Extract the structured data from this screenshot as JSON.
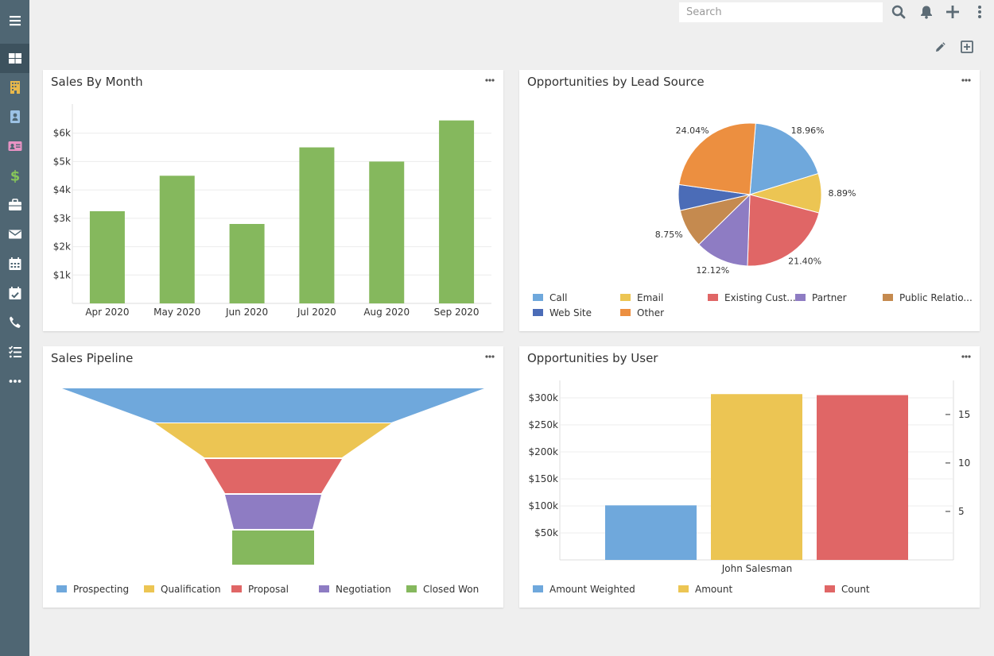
{
  "search": {
    "placeholder": "Search"
  },
  "sidebar": {
    "items": [
      {
        "icon": "menu-icon",
        "color": "#ffffff"
      },
      {
        "icon": "dashboard-icon",
        "color": "#ffffff"
      },
      {
        "icon": "building-icon",
        "color": "#e8b84b"
      },
      {
        "icon": "contact-icon",
        "color": "#9cc2e5"
      },
      {
        "icon": "id-card-icon",
        "color": "#e893c4"
      },
      {
        "icon": "dollar-icon",
        "color": "#86c55a"
      },
      {
        "icon": "briefcase-icon",
        "color": "#ffffff"
      },
      {
        "icon": "envelope-icon",
        "color": "#ffffff"
      },
      {
        "icon": "calendar-icon",
        "color": "#ffffff"
      },
      {
        "icon": "calendar-check-icon",
        "color": "#ffffff"
      },
      {
        "icon": "phone-icon",
        "color": "#ffffff"
      },
      {
        "icon": "tasks-icon",
        "color": "#ffffff"
      },
      {
        "icon": "more-icon",
        "color": "#ffffff"
      }
    ]
  },
  "colors": {
    "blue": "#6fa8dc",
    "yellow": "#ecc553",
    "red": "#e06666",
    "purple": "#8e7cc3",
    "brown": "#c58a4f",
    "navy": "#4b6cb7",
    "orange": "#ec8f40",
    "green": "#85b85d"
  },
  "panels": {
    "sales_by_month": {
      "title": "Sales By Month"
    },
    "lead_source": {
      "title": "Opportunities by Lead Source",
      "legend": [
        "Call",
        "Email",
        "Existing Cust...",
        "Partner",
        "Public Relatio...",
        "Web Site",
        "Other"
      ]
    },
    "pipeline": {
      "title": "Sales Pipeline",
      "legend": [
        "Prospecting",
        "Qualification",
        "Proposal",
        "Negotiation",
        "Closed Won"
      ]
    },
    "by_user": {
      "title": "Opportunities by User",
      "legend": [
        "Amount Weighted",
        "Amount",
        "Count"
      ]
    }
  },
  "chart_data": [
    {
      "type": "bar",
      "title": "Sales By Month",
      "categories": [
        "Apr 2020",
        "May 2020",
        "Jun 2020",
        "Jul 2020",
        "Aug 2020",
        "Sep 2020"
      ],
      "values": [
        3250,
        4500,
        2800,
        5500,
        5000,
        6450
      ],
      "yticks": [
        "$1k",
        "$2k",
        "$3k",
        "$4k",
        "$5k",
        "$6k"
      ],
      "ylim": [
        0,
        7000
      ],
      "color": "#85b85d",
      "grid": true
    },
    {
      "type": "pie",
      "title": "Opportunities by Lead Source",
      "slices": [
        {
          "name": "Call",
          "value": 18.96,
          "label": "18.96%",
          "color": "#6fa8dc"
        },
        {
          "name": "Email",
          "value": 8.89,
          "label": "8.89%",
          "color": "#ecc553"
        },
        {
          "name": "Existing Cust...",
          "value": 21.4,
          "label": "21.40%",
          "color": "#e06666"
        },
        {
          "name": "Partner",
          "value": 12.12,
          "label": "12.12%",
          "color": "#8e7cc3"
        },
        {
          "name": "Public Relatio...",
          "value": 8.75,
          "label": "8.75%",
          "color": "#c58a4f"
        },
        {
          "name": "Web Site",
          "value": 5.84,
          "label": "",
          "color": "#4b6cb7"
        },
        {
          "name": "Other",
          "value": 24.04,
          "label": "24.04%",
          "color": "#ec8f40"
        }
      ]
    },
    {
      "type": "funnel",
      "title": "Sales Pipeline",
      "stages": [
        {
          "name": "Prospecting",
          "color": "#6fa8dc"
        },
        {
          "name": "Qualification",
          "color": "#ecc553"
        },
        {
          "name": "Proposal",
          "color": "#e06666"
        },
        {
          "name": "Negotiation",
          "color": "#8e7cc3"
        },
        {
          "name": "Closed Won",
          "color": "#85b85d"
        }
      ]
    },
    {
      "type": "bar",
      "title": "Opportunities by User",
      "categories": [
        "John Salesman"
      ],
      "series": [
        {
          "name": "Amount Weighted",
          "values": [
            101000
          ],
          "axis": "left",
          "color": "#6fa8dc"
        },
        {
          "name": "Amount",
          "values": [
            307000
          ],
          "axis": "left",
          "color": "#ecc553"
        },
        {
          "name": "Count",
          "values": [
            17
          ],
          "axis": "right",
          "color": "#e06666"
        }
      ],
      "yticks_left": [
        "$50k",
        "$100k",
        "$150k",
        "$200k",
        "$250k",
        "$300k"
      ],
      "ylim_left": [
        0,
        350000
      ],
      "yticks_right": [
        "5",
        "10",
        "15"
      ],
      "ylim_right": [
        0,
        19.5
      ],
      "grid": true
    }
  ]
}
